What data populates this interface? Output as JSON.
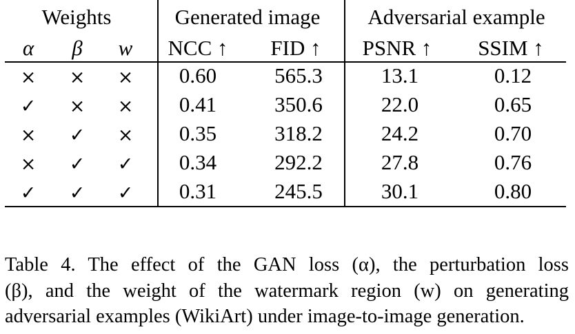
{
  "table": {
    "group_headers": [
      "Weights",
      "Generated image",
      "Adversarial example"
    ],
    "sub_headers": [
      "α",
      "β",
      "w",
      "NCC ↑",
      "FID ↑",
      "PSNR ↑",
      "SSIM ↑"
    ],
    "rows": [
      {
        "alpha": "×",
        "beta": "×",
        "w": "×",
        "ncc": "0.60",
        "fid": "565.3",
        "psnr": "13.1",
        "ssim": "0.12"
      },
      {
        "alpha": "✓",
        "beta": "×",
        "w": "×",
        "ncc": "0.41",
        "fid": "350.6",
        "psnr": "22.0",
        "ssim": "0.65"
      },
      {
        "alpha": "×",
        "beta": "✓",
        "w": "×",
        "ncc": "0.35",
        "fid": "318.2",
        "psnr": "24.2",
        "ssim": "0.70"
      },
      {
        "alpha": "×",
        "beta": "✓",
        "w": "✓",
        "ncc": "0.34",
        "fid": "292.2",
        "psnr": "27.8",
        "ssim": "0.76"
      },
      {
        "alpha": "✓",
        "beta": "✓",
        "w": "✓",
        "ncc": "0.31",
        "fid": "245.5",
        "psnr": "30.1",
        "ssim": "0.80"
      }
    ]
  },
  "caption": {
    "line1": "Table 4.  The effect of the GAN loss (α), the perturbation loss",
    "line2": "(β), and the weight of the watermark region (w) on generating",
    "line3": "adversarial examples (WikiArt) under image-to-image generation."
  }
}
